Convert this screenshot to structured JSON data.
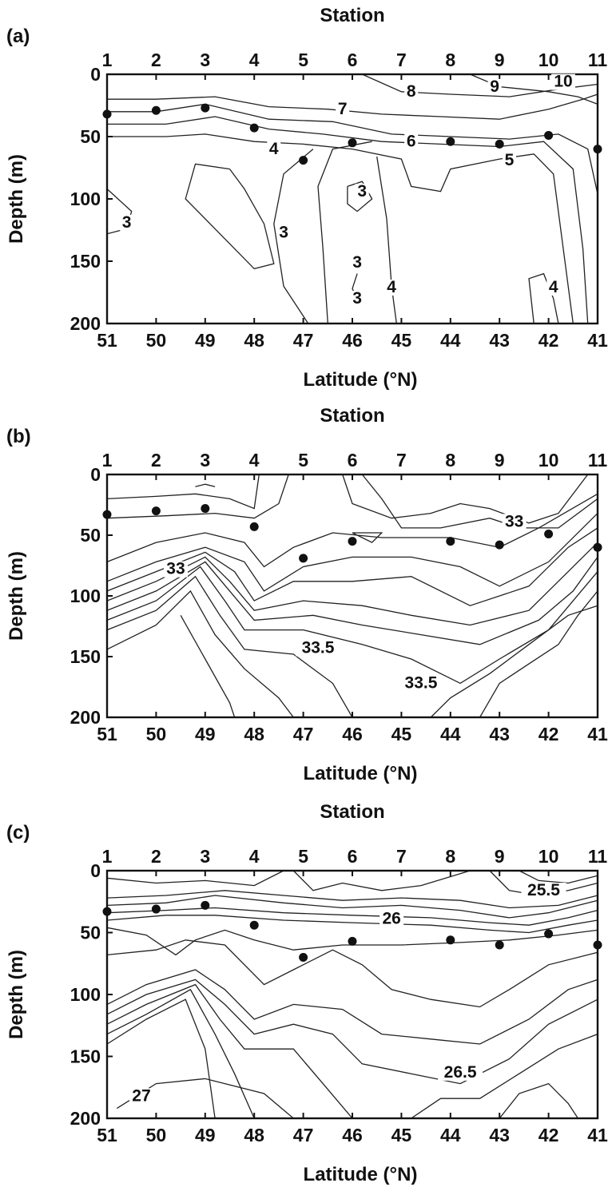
{
  "chart_data": [
    {
      "type": "contour",
      "panel_label": "(a)",
      "top_axis_title": "Station",
      "xlabel": "Latitude (°N)",
      "ylabel": "Depth (m)",
      "xlim": [
        51,
        41
      ],
      "ylim": [
        0,
        200
      ],
      "y_reversed": true,
      "x_ticks": [
        51,
        50,
        49,
        48,
        47,
        46,
        45,
        44,
        43,
        42,
        41
      ],
      "y_ticks": [
        0,
        50,
        100,
        150,
        200
      ],
      "stations": [
        1,
        2,
        3,
        4,
        5,
        6,
        7,
        8,
        9,
        10,
        11
      ],
      "station_points": [
        {
          "station": 1,
          "lat": 51.0,
          "depth": 32
        },
        {
          "station": 2,
          "lat": 50.0,
          "depth": 29
        },
        {
          "station": 3,
          "lat": 49.0,
          "depth": 27
        },
        {
          "station": 4,
          "lat": 48.0,
          "depth": 43
        },
        {
          "station": 5,
          "lat": 47.0,
          "depth": 69
        },
        {
          "station": 6,
          "lat": 46.0,
          "depth": 55
        },
        {
          "station": 8,
          "lat": 44.0,
          "depth": 54
        },
        {
          "station": 9,
          "lat": 43.0,
          "depth": 56
        },
        {
          "station": 10,
          "lat": 42.0,
          "depth": 49
        },
        {
          "station": 11,
          "lat": 41.0,
          "depth": 60
        }
      ],
      "contour_labels": [
        {
          "text": "8",
          "lat": 44.8,
          "depth": 18
        },
        {
          "text": "9",
          "lat": 43.1,
          "depth": 14
        },
        {
          "text": "10",
          "lat": 41.7,
          "depth": 10
        },
        {
          "text": "7",
          "lat": 46.2,
          "depth": 32
        },
        {
          "text": "6",
          "lat": 44.8,
          "depth": 58
        },
        {
          "text": "5",
          "lat": 42.8,
          "depth": 73
        },
        {
          "text": "4",
          "lat": 47.6,
          "depth": 64
        },
        {
          "text": "3",
          "lat": 45.8,
          "depth": 98
        },
        {
          "text": "3",
          "lat": 50.6,
          "depth": 123
        },
        {
          "text": "3",
          "lat": 47.4,
          "depth": 131
        },
        {
          "text": "3",
          "lat": 45.9,
          "depth": 155
        },
        {
          "text": "4",
          "lat": 45.2,
          "depth": 175
        },
        {
          "text": "3",
          "lat": 45.9,
          "depth": 184
        },
        {
          "text": "4",
          "lat": 41.9,
          "depth": 175
        }
      ]
    },
    {
      "type": "contour",
      "panel_label": "(b)",
      "top_axis_title": "Station",
      "xlabel": "Latitude (°N)",
      "ylabel": "Depth (m)",
      "xlim": [
        51,
        41
      ],
      "ylim": [
        0,
        200
      ],
      "y_reversed": true,
      "x_ticks": [
        51,
        50,
        49,
        48,
        47,
        46,
        45,
        44,
        43,
        42,
        41
      ],
      "y_ticks": [
        0,
        50,
        100,
        150,
        200
      ],
      "stations": [
        1,
        2,
        3,
        4,
        5,
        6,
        7,
        8,
        9,
        10,
        11
      ],
      "station_points": [
        {
          "station": 1,
          "lat": 51.0,
          "depth": 33
        },
        {
          "station": 2,
          "lat": 50.0,
          "depth": 30
        },
        {
          "station": 3,
          "lat": 49.0,
          "depth": 28
        },
        {
          "station": 4,
          "lat": 48.0,
          "depth": 43
        },
        {
          "station": 5,
          "lat": 47.0,
          "depth": 69
        },
        {
          "station": 6,
          "lat": 46.0,
          "depth": 55
        },
        {
          "station": 8,
          "lat": 44.0,
          "depth": 55
        },
        {
          "station": 9,
          "lat": 43.0,
          "depth": 58
        },
        {
          "station": 10,
          "lat": 42.0,
          "depth": 49
        },
        {
          "station": 11,
          "lat": 41.0,
          "depth": 60
        }
      ],
      "contour_labels": [
        {
          "text": "33",
          "lat": 42.7,
          "depth": 43
        },
        {
          "text": "33",
          "lat": 49.6,
          "depth": 82
        },
        {
          "text": "33.5",
          "lat": 46.7,
          "depth": 147
        },
        {
          "text": "33.5",
          "lat": 44.6,
          "depth": 176
        }
      ]
    },
    {
      "type": "contour",
      "panel_label": "(c)",
      "top_axis_title": "Station",
      "xlabel": "Latitude (°N)",
      "ylabel": "Depth (m)",
      "xlim": [
        51,
        41
      ],
      "ylim": [
        0,
        200
      ],
      "y_reversed": true,
      "x_ticks": [
        51,
        50,
        49,
        48,
        47,
        46,
        45,
        44,
        43,
        42,
        41
      ],
      "y_ticks": [
        0,
        50,
        100,
        150,
        200
      ],
      "stations": [
        1,
        2,
        3,
        4,
        5,
        6,
        7,
        8,
        9,
        10,
        11
      ],
      "station_points": [
        {
          "station": 1,
          "lat": 51.0,
          "depth": 33
        },
        {
          "station": 2,
          "lat": 50.0,
          "depth": 31
        },
        {
          "station": 3,
          "lat": 49.0,
          "depth": 28
        },
        {
          "station": 4,
          "lat": 48.0,
          "depth": 44
        },
        {
          "station": 5,
          "lat": 47.0,
          "depth": 70
        },
        {
          "station": 6,
          "lat": 46.0,
          "depth": 57
        },
        {
          "station": 8,
          "lat": 44.0,
          "depth": 56
        },
        {
          "station": 9,
          "lat": 43.0,
          "depth": 60
        },
        {
          "station": 10,
          "lat": 42.0,
          "depth": 51
        },
        {
          "station": 11,
          "lat": 41.0,
          "depth": 60
        }
      ],
      "contour_labels": [
        {
          "text": "25.5",
          "lat": 42.1,
          "depth": 20
        },
        {
          "text": "26",
          "lat": 45.2,
          "depth": 43
        },
        {
          "text": "26.5",
          "lat": 43.8,
          "depth": 167
        },
        {
          "text": "27",
          "lat": 50.3,
          "depth": 186
        }
      ]
    }
  ]
}
